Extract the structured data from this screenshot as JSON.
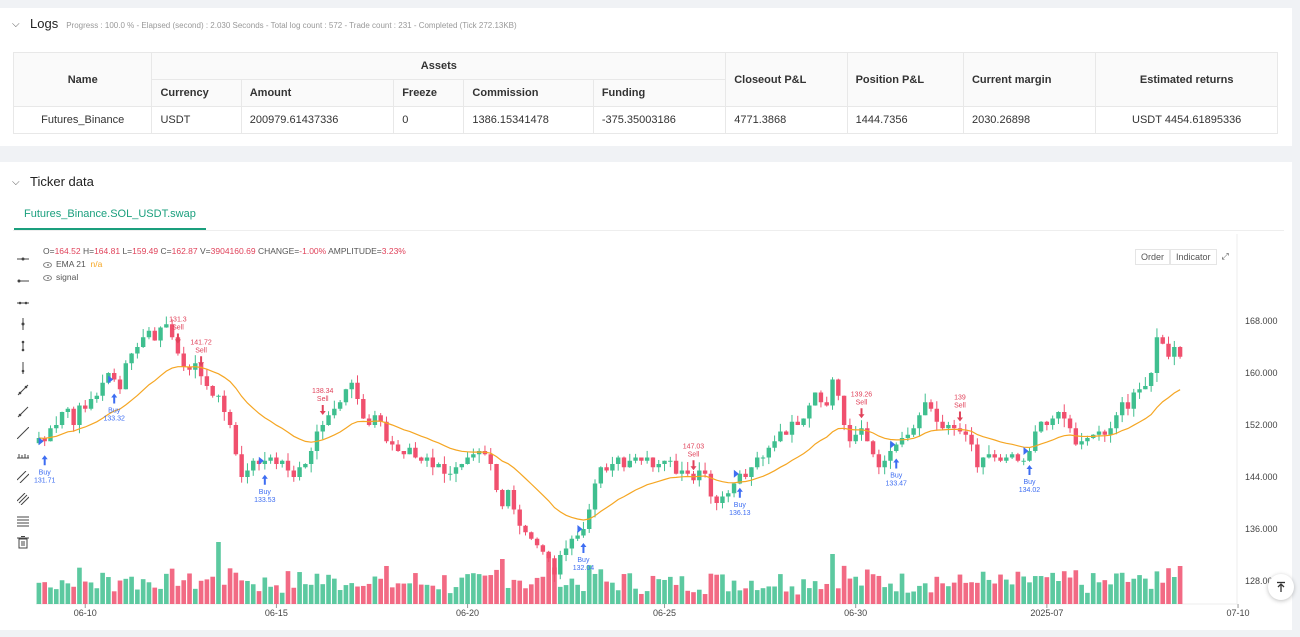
{
  "logs": {
    "title": "Logs",
    "summary": "Progress : 100.0 % - Elapsed (second) : 2.030  Seconds - Total log count : 572 - Trade count : 231 - Completed (Tick 272.13KB)",
    "table": {
      "headers": {
        "name": "Name",
        "assets": "Assets",
        "currency": "Currency",
        "amount": "Amount",
        "freeze": "Freeze",
        "commission": "Commission",
        "funding": "Funding",
        "closeout": "Closeout P&L",
        "position": "Position P&L",
        "margin": "Current margin",
        "returns": "Estimated returns"
      },
      "row": {
        "name": "Futures_Binance",
        "currency": "USDT",
        "amount": "200979.61437336",
        "freeze": "0",
        "commission": "1386.15341478",
        "funding": "-375.35003186",
        "closeout": "4771.3868",
        "position": "1444.7356",
        "margin": "2030.26898",
        "returns": "USDT 4454.61895336"
      }
    }
  },
  "ticker": {
    "title": "Ticker data",
    "tab": "Futures_Binance.SOL_USDT.swap",
    "ohlc": {
      "o_label": "O=",
      "o": "164.52",
      "h_label": "H=",
      "h": "164.81",
      "l_label": "L=",
      "l": "159.49",
      "c_label": "C=",
      "c": "162.87",
      "v_label": "V=",
      "v": "3904160.69",
      "change_label": "CHANGE=",
      "change": "-1.00%",
      "amp_label": "AMPLITUDE=",
      "amp": "3.23%"
    },
    "ema_label": "EMA 21",
    "ema_value": "n/a",
    "signal_label": "signal",
    "controls": {
      "order": "Order",
      "indicator": "Indicator"
    }
  },
  "colors": {
    "up": "#3fbf8f",
    "down": "#f0506e",
    "ema": "#f5a623",
    "buy": "#3d6df2",
    "sell": "#e0425a",
    "accent": "#1a9f7d"
  },
  "icons": [
    "horizontal-line-icon",
    "horizontal-ray-icon",
    "extended-line-icon",
    "vertical-line-icon",
    "vertical-segment-icon",
    "vertical-ray-icon",
    "trend-line-icon",
    "trend-ray-icon",
    "extended-trend-icon",
    "ruler-icon",
    "parallel-channel-icon",
    "pitchfork-icon",
    "fib-icon",
    "trash-icon"
  ],
  "chart_data": {
    "type": "candlestick",
    "y_ticks": [
      168,
      160,
      152,
      144,
      136,
      128
    ],
    "y_tick_labels": [
      "168.000",
      "160.000",
      "152.000",
      "144.000",
      "136.000",
      "128.000"
    ],
    "x_tick_labels": [
      "06-10",
      "06-15",
      "06-20",
      "06-25",
      "06-30",
      "2025-07",
      "07-10"
    ],
    "ylim": [
      125.5,
      174.5
    ],
    "close": [
      150.0,
      149.5,
      151.5,
      152.0,
      154.0,
      154.5,
      152.0,
      155.0,
      154.5,
      156.0,
      156.5,
      158.5,
      160.0,
      159.0,
      157.5,
      161.5,
      163.0,
      164.0,
      165.5,
      166.5,
      165.0,
      167.0,
      167.5,
      165.5,
      163.0,
      161.0,
      160.5,
      161.5,
      159.5,
      158.0,
      156.5,
      156.5,
      154.0,
      152.0,
      147.5,
      144.0,
      145.0,
      146.5,
      146.0,
      146.5,
      147.0,
      146.0,
      146.5,
      145.0,
      144.0,
      145.5,
      146.0,
      148.0,
      151.0,
      152.0,
      153.5,
      154.5,
      155.5,
      157.5,
      158.5,
      156.0,
      153.0,
      152.0,
      153.5,
      152.5,
      149.5,
      149.0,
      148.0,
      147.5,
      148.5,
      147.0,
      146.5,
      147.0,
      145.5,
      146.0,
      144.5,
      144.5,
      145.5,
      146.0,
      147.0,
      147.5,
      148.0,
      147.5,
      146.0,
      142.0,
      139.5,
      142.0,
      139.0,
      136.5,
      135.5,
      134.5,
      133.5,
      132.5,
      131.5,
      129.0,
      132.0,
      133.0,
      134.5,
      135.0,
      136.0,
      139.0,
      143.0,
      145.5,
      145.0,
      146.0,
      147.0,
      145.5,
      146.5,
      147.0,
      146.5,
      147.0,
      145.5,
      146.0,
      146.5,
      146.5,
      144.5,
      145.0,
      144.5,
      143.5,
      145.0,
      144.5,
      141.0,
      140.0,
      141.0,
      141.5,
      143.0,
      144.5,
      144.0,
      145.5,
      147.0,
      147.0,
      148.5,
      149.5,
      151.0,
      150.5,
      152.5,
      152.0,
      153.0,
      155.0,
      157.0,
      155.5,
      155.0,
      159.0,
      156.5,
      152.0,
      149.5,
      150.5,
      151.5,
      149.5,
      147.5,
      145.5,
      146.5,
      148.0,
      149.0,
      150.0,
      150.5,
      151.5,
      153.5,
      155.5,
      154.5,
      152.5,
      151.5,
      152.0,
      151.5,
      151.0,
      150.5,
      149.0,
      145.5,
      147.0,
      147.5,
      147.0,
      146.5,
      147.0,
      147.5,
      146.5,
      146.5,
      148.0,
      151.0,
      152.5,
      152.0,
      153.0,
      154.0,
      153.0,
      151.5,
      149.0,
      149.5,
      150.0,
      150.5,
      151.0,
      150.5,
      151.5,
      153.5,
      155.5,
      154.5,
      157.0,
      157.5,
      158.0,
      160.0,
      165.5,
      164.5,
      162.5,
      164.0,
      162.5
    ],
    "buy_signals": [
      {
        "index": 1,
        "label": "Buy",
        "price": "131.71"
      },
      {
        "index": 13,
        "label": "Buy",
        "price": "133.32"
      },
      {
        "index": 39,
        "label": "Buy",
        "price": "133.53"
      },
      {
        "index": 94,
        "label": "Buy",
        "price": "132.04"
      },
      {
        "index": 121,
        "label": "Buy",
        "price": "136.13"
      },
      {
        "index": 148,
        "label": "Buy",
        "price": "133.47"
      },
      {
        "index": 171,
        "label": "Buy",
        "price": "134.02"
      }
    ],
    "sell_signals": [
      {
        "index": 24,
        "label": "Sell",
        "price": "131.3"
      },
      {
        "index": 28,
        "label": "Sell",
        "price": "141.72"
      },
      {
        "index": 49,
        "label": "Sell",
        "price": "138.34"
      },
      {
        "index": 113,
        "label": "Sell",
        "price": "147.03"
      },
      {
        "index": 142,
        "label": "Sell",
        "price": "139.26"
      },
      {
        "index": 159,
        "label": "Sell",
        "price": "139"
      }
    ],
    "series": [
      {
        "name": "EMA 21"
      },
      {
        "name": "signal"
      }
    ]
  }
}
